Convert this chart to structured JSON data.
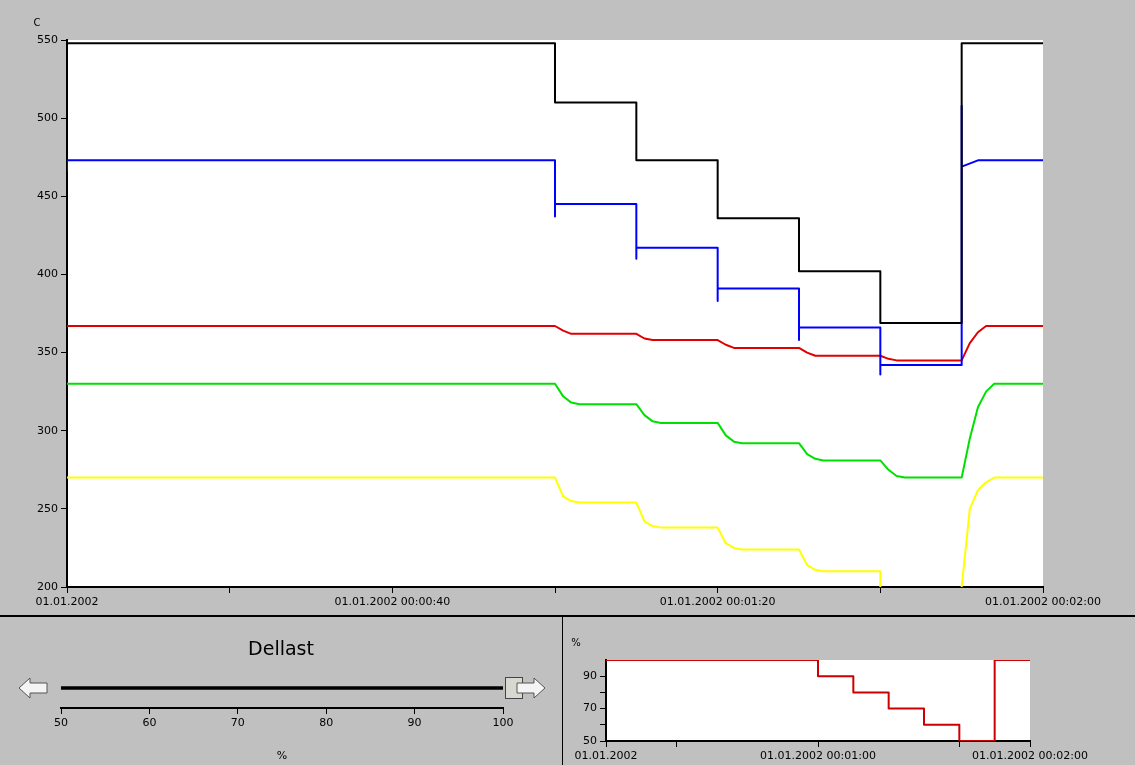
{
  "chart_data": [
    {
      "type": "line",
      "ylabel": "C",
      "xlim": [
        "2002-01-01T00:00:00",
        "2002-01-01T00:02:00"
      ],
      "ylim": [
        200,
        550
      ],
      "xticks": [
        {
          "value": "2002-01-01T00:00:00",
          "label": "01.01.2002"
        },
        {
          "value": "2002-01-01T00:00:20",
          "label": null
        },
        {
          "value": "2002-01-01T00:00:40",
          "label": "01.01.2002 00:00:40"
        },
        {
          "value": "2002-01-01T00:01:00",
          "label": null
        },
        {
          "value": "2002-01-01T00:01:20",
          "label": "01.01.2002 00:01:20"
        },
        {
          "value": "2002-01-01T00:01:40",
          "label": null
        },
        {
          "value": "2002-01-01T00:02:00",
          "label": "01.01.2002 00:02:00"
        }
      ],
      "yticks": [
        200,
        250,
        300,
        350,
        400,
        450,
        500,
        550
      ],
      "grid": false,
      "legend": false,
      "marker": "none",
      "series": [
        {
          "color": "#000000",
          "x": [
            "2002-01-01T00:00:00",
            "2002-01-01T00:01:00",
            "2002-01-01T00:01:00",
            "2002-01-01T00:01:10",
            "2002-01-01T00:01:10",
            "2002-01-01T00:01:20",
            "2002-01-01T00:01:20",
            "2002-01-01T00:01:30",
            "2002-01-01T00:01:30",
            "2002-01-01T00:01:40",
            "2002-01-01T00:01:40",
            "2002-01-01T00:01:50",
            "2002-01-01T00:01:50",
            "2002-01-01T00:02:00"
          ],
          "values": [
            548,
            548,
            510,
            510,
            473,
            473,
            436,
            436,
            402,
            402,
            369,
            369,
            548,
            548
          ]
        },
        {
          "color": "#0000ff",
          "x": [
            "2002-01-01T00:00:00",
            "2002-01-01T00:00:00",
            "2002-01-01T00:01:00",
            "2002-01-01T00:01:00",
            "2002-01-01T00:01:00",
            "2002-01-01T00:01:10",
            "2002-01-01T00:01:10",
            "2002-01-01T00:01:10",
            "2002-01-01T00:01:20",
            "2002-01-01T00:01:20",
            "2002-01-01T00:01:20",
            "2002-01-01T00:01:30",
            "2002-01-01T00:01:30",
            "2002-01-01T00:01:30",
            "2002-01-01T00:01:40",
            "2002-01-01T00:01:40",
            "2002-01-01T00:01:40",
            "2002-01-01T00:01:50",
            "2002-01-01T00:01:50",
            "2002-01-01T00:01:50",
            "2002-01-01T00:01:52",
            "2002-01-01T00:02:00"
          ],
          "values": [
            466,
            473,
            473,
            437,
            445,
            445,
            410,
            417,
            417,
            383,
            391,
            391,
            358,
            366,
            366,
            336,
            342,
            342,
            508,
            469,
            473,
            473
          ]
        },
        {
          "color": "#e00000",
          "x": [
            "2002-01-01T00:00:00",
            "2002-01-01T00:01:00",
            "2002-01-01T00:01:01",
            "2002-01-01T00:01:02",
            "2002-01-01T00:01:10",
            "2002-01-01T00:01:11",
            "2002-01-01T00:01:12",
            "2002-01-01T00:01:20",
            "2002-01-01T00:01:21",
            "2002-01-01T00:01:22",
            "2002-01-01T00:01:30",
            "2002-01-01T00:01:31",
            "2002-01-01T00:01:32",
            "2002-01-01T00:01:40",
            "2002-01-01T00:01:41",
            "2002-01-01T00:01:42",
            "2002-01-01T00:01:50",
            "2002-01-01T00:01:51",
            "2002-01-01T00:01:52",
            "2002-01-01T00:01:53",
            "2002-01-01T00:02:00"
          ],
          "values": [
            367,
            367,
            364,
            362,
            362,
            359,
            358,
            358,
            355,
            353,
            353,
            350,
            348,
            348,
            346,
            345,
            345,
            356,
            363,
            367,
            367
          ]
        },
        {
          "color": "#00e000",
          "x": [
            "2002-01-01T00:00:00",
            "2002-01-01T00:01:00",
            "2002-01-01T00:01:01",
            "2002-01-01T00:01:02",
            "2002-01-01T00:01:03",
            "2002-01-01T00:01:10",
            "2002-01-01T00:01:11",
            "2002-01-01T00:01:12",
            "2002-01-01T00:01:13",
            "2002-01-01T00:01:20",
            "2002-01-01T00:01:21",
            "2002-01-01T00:01:22",
            "2002-01-01T00:01:23",
            "2002-01-01T00:01:30",
            "2002-01-01T00:01:31",
            "2002-01-01T00:01:32",
            "2002-01-01T00:01:33",
            "2002-01-01T00:01:40",
            "2002-01-01T00:01:41",
            "2002-01-01T00:01:42",
            "2002-01-01T00:01:43",
            "2002-01-01T00:01:50",
            "2002-01-01T00:01:51",
            "2002-01-01T00:01:52",
            "2002-01-01T00:01:53",
            "2002-01-01T00:01:54",
            "2002-01-01T00:02:00"
          ],
          "values": [
            330,
            330,
            322,
            318,
            317,
            317,
            310,
            306,
            305,
            305,
            297,
            293,
            292,
            292,
            285,
            282,
            281,
            281,
            275,
            271,
            270,
            270,
            295,
            315,
            325,
            330,
            330
          ]
        },
        {
          "color": "#ffff00",
          "x": [
            "2002-01-01T00:00:00",
            "2002-01-01T00:01:00",
            "2002-01-01T00:01:01",
            "2002-01-01T00:01:02",
            "2002-01-01T00:01:03",
            "2002-01-01T00:01:10",
            "2002-01-01T00:01:11",
            "2002-01-01T00:01:12",
            "2002-01-01T00:01:13",
            "2002-01-01T00:01:20",
            "2002-01-01T00:01:21",
            "2002-01-01T00:01:22",
            "2002-01-01T00:01:23",
            "2002-01-01T00:01:30",
            "2002-01-01T00:01:31",
            "2002-01-01T00:01:32",
            "2002-01-01T00:01:33",
            "2002-01-01T00:01:40",
            "2002-01-01T00:01:40",
            "2002-01-01T00:01:41",
            "2002-01-01T00:01:50",
            "2002-01-01T00:01:51",
            "2002-01-01T00:01:52",
            "2002-01-01T00:01:53",
            "2002-01-01T00:01:54",
            "2002-01-01T00:02:00"
          ],
          "values": [
            270,
            270,
            258,
            255,
            254,
            254,
            242,
            239,
            238,
            238,
            228,
            225,
            224,
            224,
            214,
            211,
            210,
            210,
            200,
            null,
            200,
            250,
            262,
            267,
            270,
            270
          ]
        }
      ]
    },
    {
      "type": "bar",
      "orientation": "horizontal",
      "title": "Dellast",
      "xlabel": "%",
      "categories": [
        null
      ],
      "values": [
        100
      ],
      "color": "#000000",
      "xlim": [
        50,
        100
      ],
      "xticks": [
        50,
        60,
        70,
        80,
        90,
        100
      ],
      "grid": false,
      "legend": false
    },
    {
      "type": "line",
      "ylabel": "%",
      "xlim": [
        "2002-01-01T00:00:00",
        "2002-01-01T00:02:00"
      ],
      "ylim": [
        50,
        100
      ],
      "xticks": [
        {
          "value": "2002-01-01T00:00:00",
          "label": "01.01.2002"
        },
        {
          "value": "2002-01-01T00:00:20",
          "label": null
        },
        {
          "value": "2002-01-01T00:01:00",
          "label": "01.01.2002 00:01:00"
        },
        {
          "value": "2002-01-01T00:01:40",
          "label": null
        },
        {
          "value": "2002-01-01T00:02:00",
          "label": "01.01.2002 00:02:00"
        }
      ],
      "yticks": [
        50,
        {
          "value": 60,
          "label": null
        },
        70,
        {
          "value": 80,
          "label": null
        },
        90
      ],
      "grid": false,
      "legend": false,
      "marker": "none",
      "series": [
        {
          "color": "#cc0000",
          "x": [
            "2002-01-01T00:00:00",
            "2002-01-01T00:01:00",
            "2002-01-01T00:01:00",
            "2002-01-01T00:01:10",
            "2002-01-01T00:01:10",
            "2002-01-01T00:01:20",
            "2002-01-01T00:01:20",
            "2002-01-01T00:01:30",
            "2002-01-01T00:01:30",
            "2002-01-01T00:01:40",
            "2002-01-01T00:01:40",
            "2002-01-01T00:01:50",
            "2002-01-01T00:01:50",
            "2002-01-01T00:02:00"
          ],
          "values": [
            100,
            100,
            90,
            90,
            80,
            80,
            70,
            70,
            60,
            60,
            50,
            50,
            100,
            100
          ]
        }
      ]
    }
  ]
}
